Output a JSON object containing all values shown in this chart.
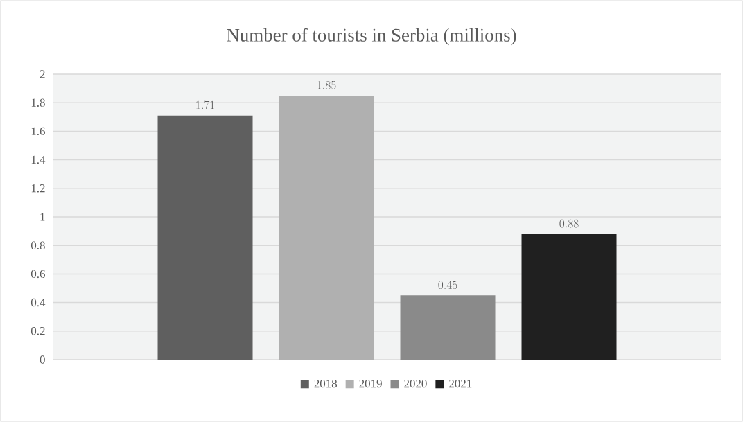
{
  "chart_data": {
    "type": "bar",
    "title": "Number of tourists in Serbia (millions)",
    "categories": [
      null
    ],
    "series": [
      {
        "name": "2018",
        "color": "#5f5f5f",
        "values": [
          1.71
        ]
      },
      {
        "name": "2019",
        "color": "#b0b0b0",
        "values": [
          1.85
        ]
      },
      {
        "name": "2020",
        "color": "#8a8a8a",
        "values": [
          0.45
        ]
      },
      {
        "name": "2021",
        "color": "#202020",
        "values": [
          0.88
        ]
      }
    ],
    "ylim": [
      0,
      2
    ],
    "yticks": [
      0,
      0.2,
      0.4,
      0.6,
      0.8,
      1,
      1.2,
      1.4,
      1.6,
      1.8,
      2
    ],
    "grid": "y",
    "legend": "bottom",
    "data_labels": true
  }
}
